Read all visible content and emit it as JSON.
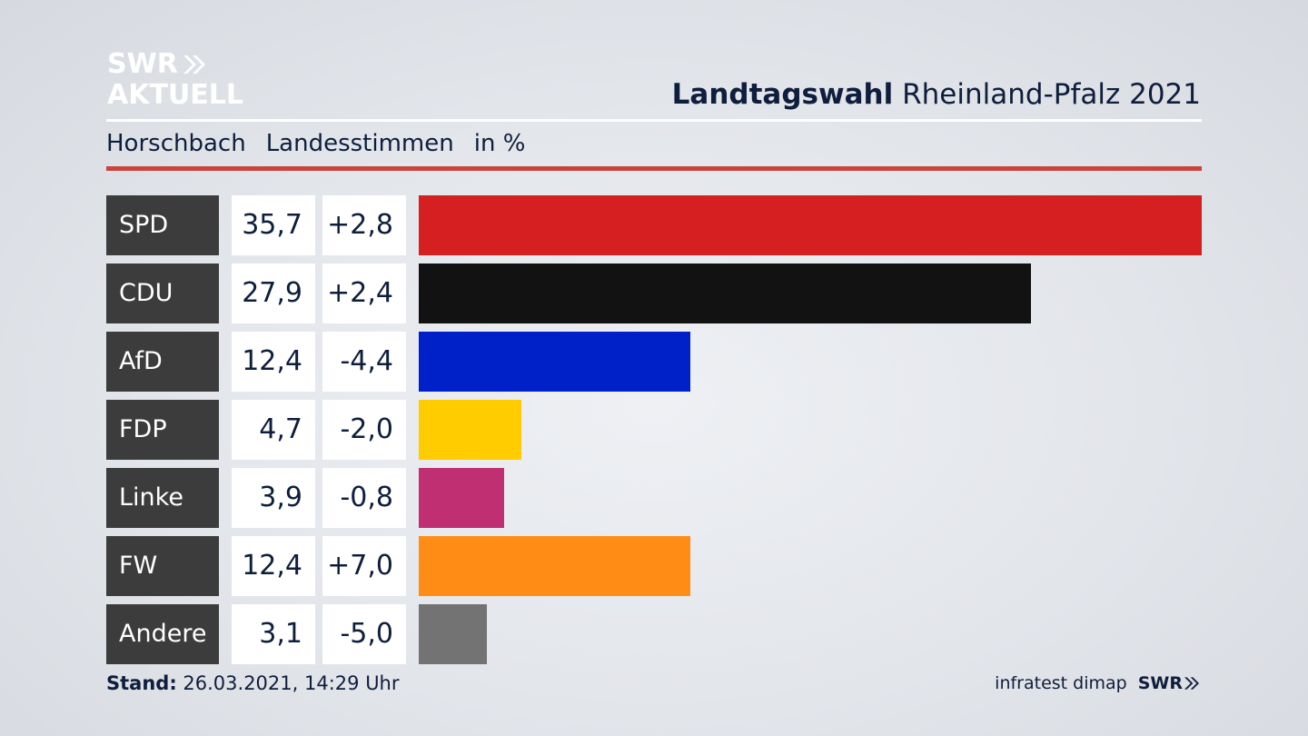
{
  "brand": {
    "logo_line1": "SWR",
    "logo_line2": "AKTUELL"
  },
  "header": {
    "title_bold": "Landtagswahl",
    "title_rest": "Rheinland-Pfalz 2021"
  },
  "subheader": {
    "place": "Horschbach",
    "measure": "Landesstimmen",
    "unit": "in %"
  },
  "colors": {
    "accent_rule": "#c9443d",
    "label_box": "#3c3c3c"
  },
  "chart_data": {
    "type": "bar",
    "orientation": "horizontal",
    "categories": [
      "SPD",
      "CDU",
      "AfD",
      "FDP",
      "Linke",
      "FW",
      "Andere"
    ],
    "values": [
      35.7,
      27.9,
      12.4,
      4.7,
      3.9,
      12.4,
      3.1
    ],
    "value_labels": [
      "35,7",
      "27,9",
      "12,4",
      "4,7",
      "3,9",
      "12,4",
      "3,1"
    ],
    "change_labels": [
      "+2,8",
      "+2,4",
      "-4,4",
      "-2,0",
      "-0,8",
      "+7,0",
      "-5,0"
    ],
    "changes": [
      2.8,
      2.4,
      -4.4,
      -2.0,
      -0.8,
      7.0,
      -5.0
    ],
    "bar_colors": [
      "#d51f20",
      "#121212",
      "#0021c8",
      "#ffcc00",
      "#bf2f71",
      "#ff8c14",
      "#737373"
    ],
    "xmax": 35.7,
    "grid": false
  },
  "footer": {
    "stand_label": "Stand:",
    "stand_value": "26.03.2021, 14:29 Uhr",
    "source": "infratest dimap",
    "brand": "SWR"
  }
}
